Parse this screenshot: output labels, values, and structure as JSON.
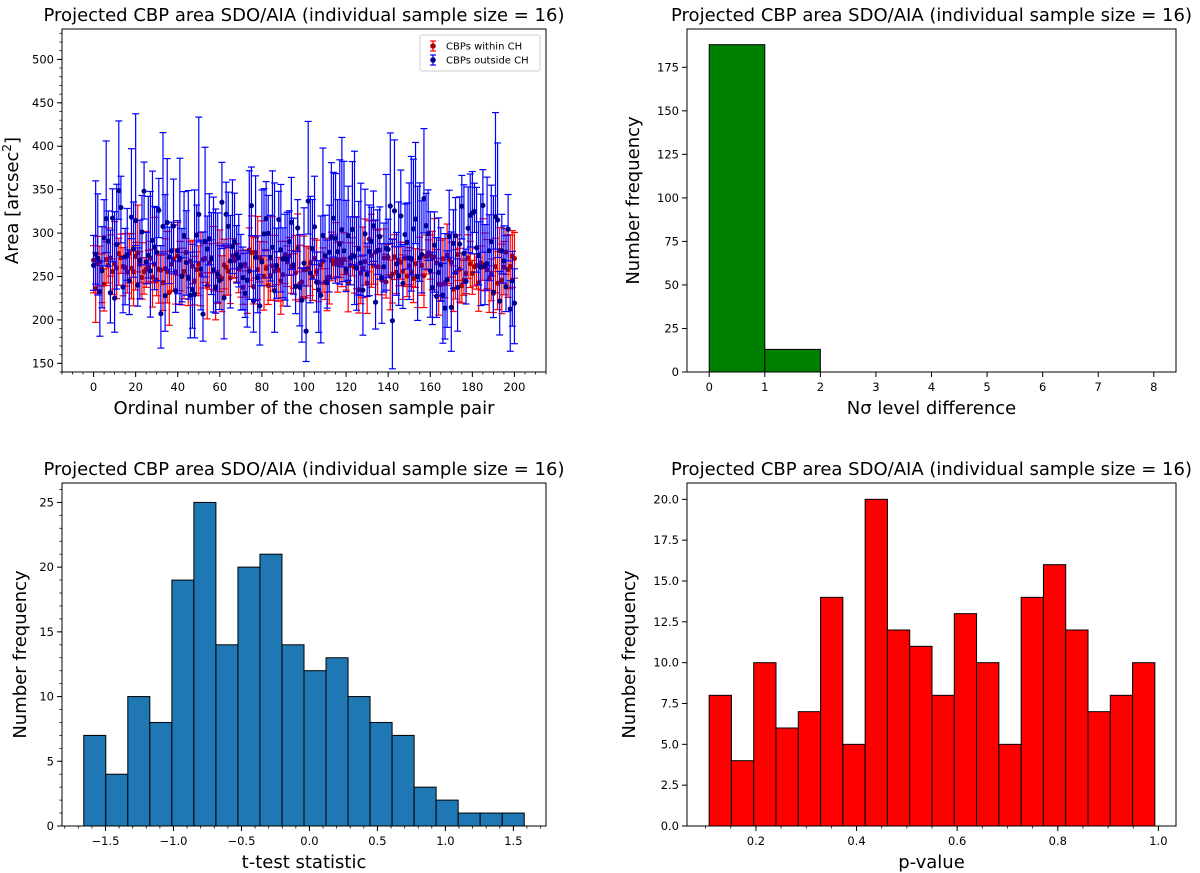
{
  "chart_data": [
    {
      "id": "scatter",
      "type": "scatter",
      "title": "Projected CBP area SDO/AIA (individual sample size = 16)",
      "xlabel": "Ordinal number of the chosen sample pair",
      "ylabel_main": "Area [arcsec",
      "ylabel_sup": "2",
      "ylabel_close": "]",
      "xlim": [
        -15,
        215
      ],
      "ylim": [
        140,
        535
      ],
      "xticks": [
        0,
        20,
        40,
        60,
        80,
        100,
        120,
        140,
        160,
        180,
        200
      ],
      "yticks": [
        150,
        200,
        250,
        300,
        350,
        400,
        450,
        500
      ],
      "legend_position": "top-right",
      "n_points": 201,
      "series": [
        {
          "name": "CBPs within CH",
          "color": "#ff0000",
          "marker_color": "#aa0000",
          "mean": 262,
          "spread": 16,
          "err_lo": 28,
          "err_hi": 58,
          "seed": 7
        },
        {
          "name": "CBPs outside CH",
          "color": "#0000ff",
          "marker_color": "#00008b",
          "mean": 268,
          "spread": 40,
          "err_lo": 40,
          "err_hi": 130,
          "seed": 13
        }
      ]
    },
    {
      "id": "nsigma",
      "type": "bar",
      "title": "Projected CBP area SDO/AIA (individual sample size = 16)",
      "xlabel": "Nσ level difference",
      "ylabel": "Number frequency",
      "color": "#008000",
      "xlim": [
        -0.4,
        8.4
      ],
      "ylim": [
        0,
        197
      ],
      "xticks": [
        0,
        1,
        2,
        3,
        4,
        5,
        6,
        7,
        8
      ],
      "yticks": [
        0,
        25,
        50,
        75,
        100,
        125,
        150,
        175
      ],
      "bins": [
        {
          "x0": 0,
          "x1": 1,
          "v": 188
        },
        {
          "x0": 1,
          "x1": 2,
          "v": 13
        },
        {
          "x0": 2,
          "x1": 3,
          "v": 0
        },
        {
          "x0": 3,
          "x1": 4,
          "v": 0
        },
        {
          "x0": 4,
          "x1": 5,
          "v": 0
        },
        {
          "x0": 5,
          "x1": 6,
          "v": 0
        },
        {
          "x0": 6,
          "x1": 7,
          "v": 0
        },
        {
          "x0": 7,
          "x1": 8,
          "v": 0
        }
      ]
    },
    {
      "id": "ttest",
      "type": "bar",
      "title": "Projected CBP area SDO/AIA (individual sample size = 16)",
      "xlabel": "t-test statistic",
      "ylabel": "Number frequency",
      "color": "#1f77b4",
      "xlim": [
        -1.82,
        1.74
      ],
      "ylim": [
        0,
        26.5
      ],
      "xticks": [
        -1.5,
        -1.0,
        -0.5,
        0.0,
        0.5,
        1.0,
        1.5
      ],
      "xtick_labels": [
        "−1.5",
        "−1.0",
        "−0.5",
        "0.0",
        "0.5",
        "1.0",
        "1.5"
      ],
      "yticks": [
        0,
        5,
        10,
        15,
        20,
        25
      ],
      "bin_start": -1.66,
      "bin_width": 0.162,
      "values": [
        7,
        4,
        10,
        8,
        19,
        25,
        14,
        20,
        21,
        14,
        12,
        13,
        10,
        8,
        7,
        3,
        2,
        1,
        1,
        1
      ]
    },
    {
      "id": "pvalue",
      "type": "bar",
      "title": "Projected CBP area SDO/AIA (individual sample size = 16)",
      "xlabel": "p-value",
      "ylabel": "Number frequency",
      "color": "#ff0000",
      "xlim": [
        0.063,
        1.035
      ],
      "ylim": [
        0,
        21
      ],
      "xticks": [
        0.2,
        0.4,
        0.6,
        0.8,
        1.0
      ],
      "xtick_labels": [
        "0.2",
        "0.4",
        "0.6",
        "0.8",
        "1.0"
      ],
      "yticks": [
        0,
        2.5,
        5,
        7.5,
        10,
        12.5,
        15,
        17.5,
        20
      ],
      "ytick_labels": [
        "0.0",
        "2.5",
        "5.0",
        "7.5",
        "10.0",
        "12.5",
        "15.0",
        "17.5",
        "20.0"
      ],
      "bin_start": 0.107,
      "bin_width": 0.0443,
      "values": [
        8,
        4,
        10,
        6,
        7,
        14,
        5,
        20,
        12,
        11,
        8,
        13,
        10,
        5,
        14,
        16,
        12,
        7,
        8,
        10
      ]
    }
  ]
}
